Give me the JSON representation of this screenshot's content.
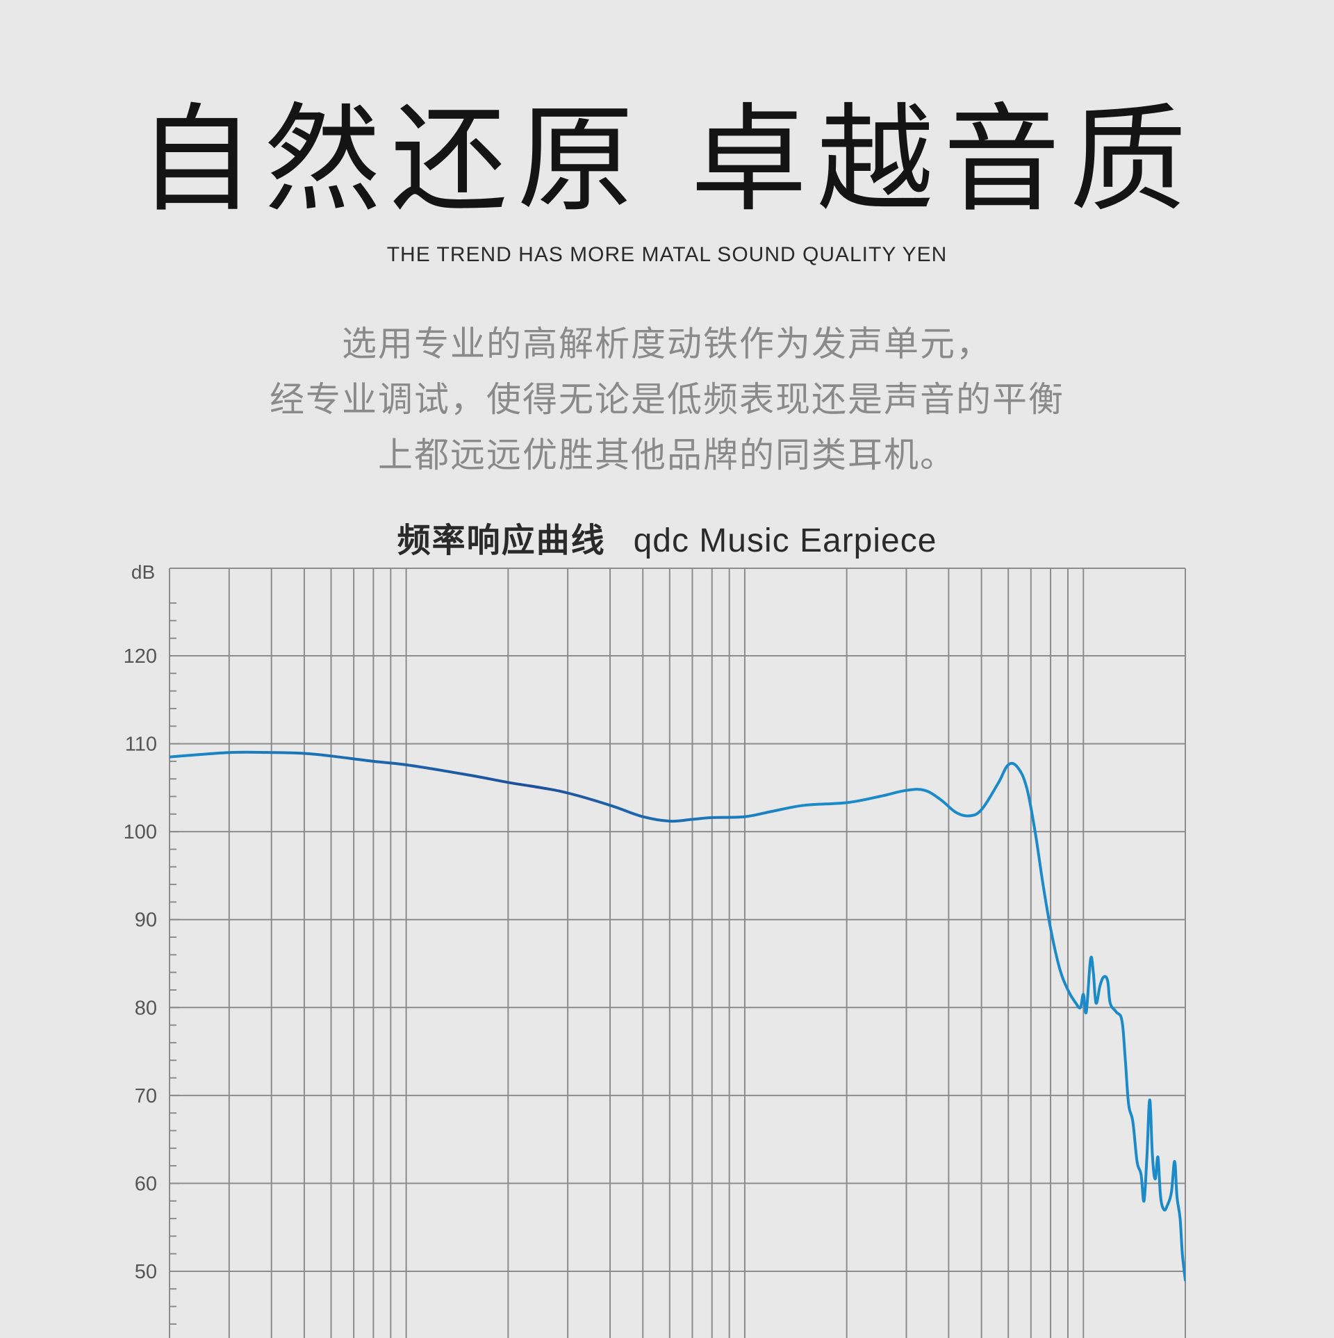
{
  "header": {
    "headline": "自然还原 卓越音质",
    "subtitle": "THE TREND HAS MORE MATAL SOUND QUALITY YEN",
    "description_lines": [
      "选用专业的高解析度动铁作为发声单元，",
      "经专业调试，使得无论是低频表现还是声音的平衡",
      "上都远远优胜其他品牌的同类耳机。"
    ]
  },
  "chart_title": {
    "zh": "频率响应曲线",
    "en": "qdc Music Earpiece"
  },
  "colors": {
    "background": "#e8e8e8",
    "grid": "#8c8c8c",
    "curve": "#1a8ac8",
    "curve_dark": "#1f4f9a"
  },
  "chart_data": {
    "type": "line",
    "title": "频率响应曲线 qdc Music Earpiece",
    "xlabel": "",
    "ylabel": "dB",
    "x_scale": "log",
    "xlim": [
      20,
      20000
    ],
    "ylim": [
      40,
      127
    ],
    "yticks": [
      120,
      110,
      100,
      90,
      80,
      70,
      60,
      50
    ],
    "grid": true,
    "series": [
      {
        "points": [
          [
            20,
            108.5
          ],
          [
            30,
            109.0
          ],
          [
            40,
            109.0
          ],
          [
            50,
            108.9
          ],
          [
            60,
            108.6
          ],
          [
            80,
            108.0
          ],
          [
            100,
            107.6
          ],
          [
            150,
            106.5
          ],
          [
            200,
            105.6
          ],
          [
            250,
            105.0
          ],
          [
            300,
            104.4
          ],
          [
            400,
            103.0
          ],
          [
            500,
            101.7
          ],
          [
            600,
            101.2
          ],
          [
            700,
            101.4
          ],
          [
            800,
            101.6
          ],
          [
            1000,
            101.7
          ],
          [
            1200,
            102.3
          ],
          [
            1500,
            103.0
          ],
          [
            2000,
            103.3
          ],
          [
            2500,
            104.0
          ],
          [
            3000,
            104.7
          ],
          [
            3400,
            104.7
          ],
          [
            3800,
            103.6
          ],
          [
            4200,
            102.2
          ],
          [
            4600,
            101.8
          ],
          [
            5000,
            102.5
          ],
          [
            5600,
            105.5
          ],
          [
            6000,
            107.6
          ],
          [
            6400,
            107.3
          ],
          [
            6800,
            105.0
          ],
          [
            7200,
            100.0
          ],
          [
            7600,
            94.0
          ],
          [
            8000,
            89.0
          ],
          [
            8500,
            84.5
          ],
          [
            9000,
            82.0
          ],
          [
            9500,
            80.5
          ],
          [
            9800,
            80.0
          ],
          [
            10000,
            81.5
          ],
          [
            10200,
            79.5
          ],
          [
            10500,
            85.5
          ],
          [
            10700,
            84.0
          ],
          [
            10900,
            80.5
          ],
          [
            11200,
            82.5
          ],
          [
            11500,
            83.5
          ],
          [
            11800,
            83.0
          ],
          [
            12000,
            80.5
          ],
          [
            12500,
            79.5
          ],
          [
            13000,
            78.5
          ],
          [
            13300,
            74.0
          ],
          [
            13600,
            69.0
          ],
          [
            14000,
            67.0
          ],
          [
            14400,
            62.5
          ],
          [
            14800,
            61.0
          ],
          [
            15100,
            58.0
          ],
          [
            15400,
            63.0
          ],
          [
            15700,
            69.5
          ],
          [
            16000,
            63.0
          ],
          [
            16300,
            60.5
          ],
          [
            16600,
            63.0
          ],
          [
            16900,
            58.5
          ],
          [
            17300,
            57.0
          ],
          [
            17700,
            57.5
          ],
          [
            18200,
            59.0
          ],
          [
            18600,
            62.5
          ],
          [
            18900,
            58.5
          ],
          [
            19300,
            56.0
          ],
          [
            19600,
            52.0
          ],
          [
            20000,
            49.0
          ]
        ]
      }
    ]
  }
}
